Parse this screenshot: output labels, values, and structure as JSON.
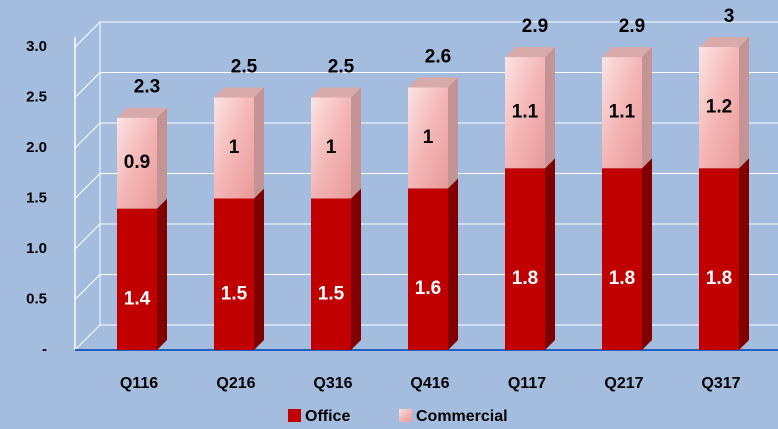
{
  "chart_data": {
    "type": "stacked-bar-3d",
    "categories": [
      "Q116",
      "Q216",
      "Q316",
      "Q416",
      "Q117",
      "Q217",
      "Q317"
    ],
    "series": [
      {
        "name": "Office",
        "color": "#c00000",
        "values": [
          1.4,
          1.5,
          1.5,
          1.6,
          1.8,
          1.8,
          1.8
        ]
      },
      {
        "name": "Commercial",
        "color": "#f4b6b6",
        "values": [
          0.9,
          1.0,
          1.0,
          1.0,
          1.1,
          1.1,
          1.2
        ]
      }
    ],
    "totals": [
      2.3,
      2.5,
      2.5,
      2.6,
      2.9,
      2.9,
      3.0
    ],
    "ylim": [
      0,
      3
    ],
    "yticks": [
      {
        "value": 0,
        "label": "-"
      },
      0.5,
      {
        "value": 1,
        "label": "1.0"
      },
      1.5,
      {
        "value": 2,
        "label": "2.0"
      },
      2.5,
      {
        "value": 3,
        "label": "3.0"
      }
    ],
    "grid": true,
    "legend": "bottom"
  }
}
